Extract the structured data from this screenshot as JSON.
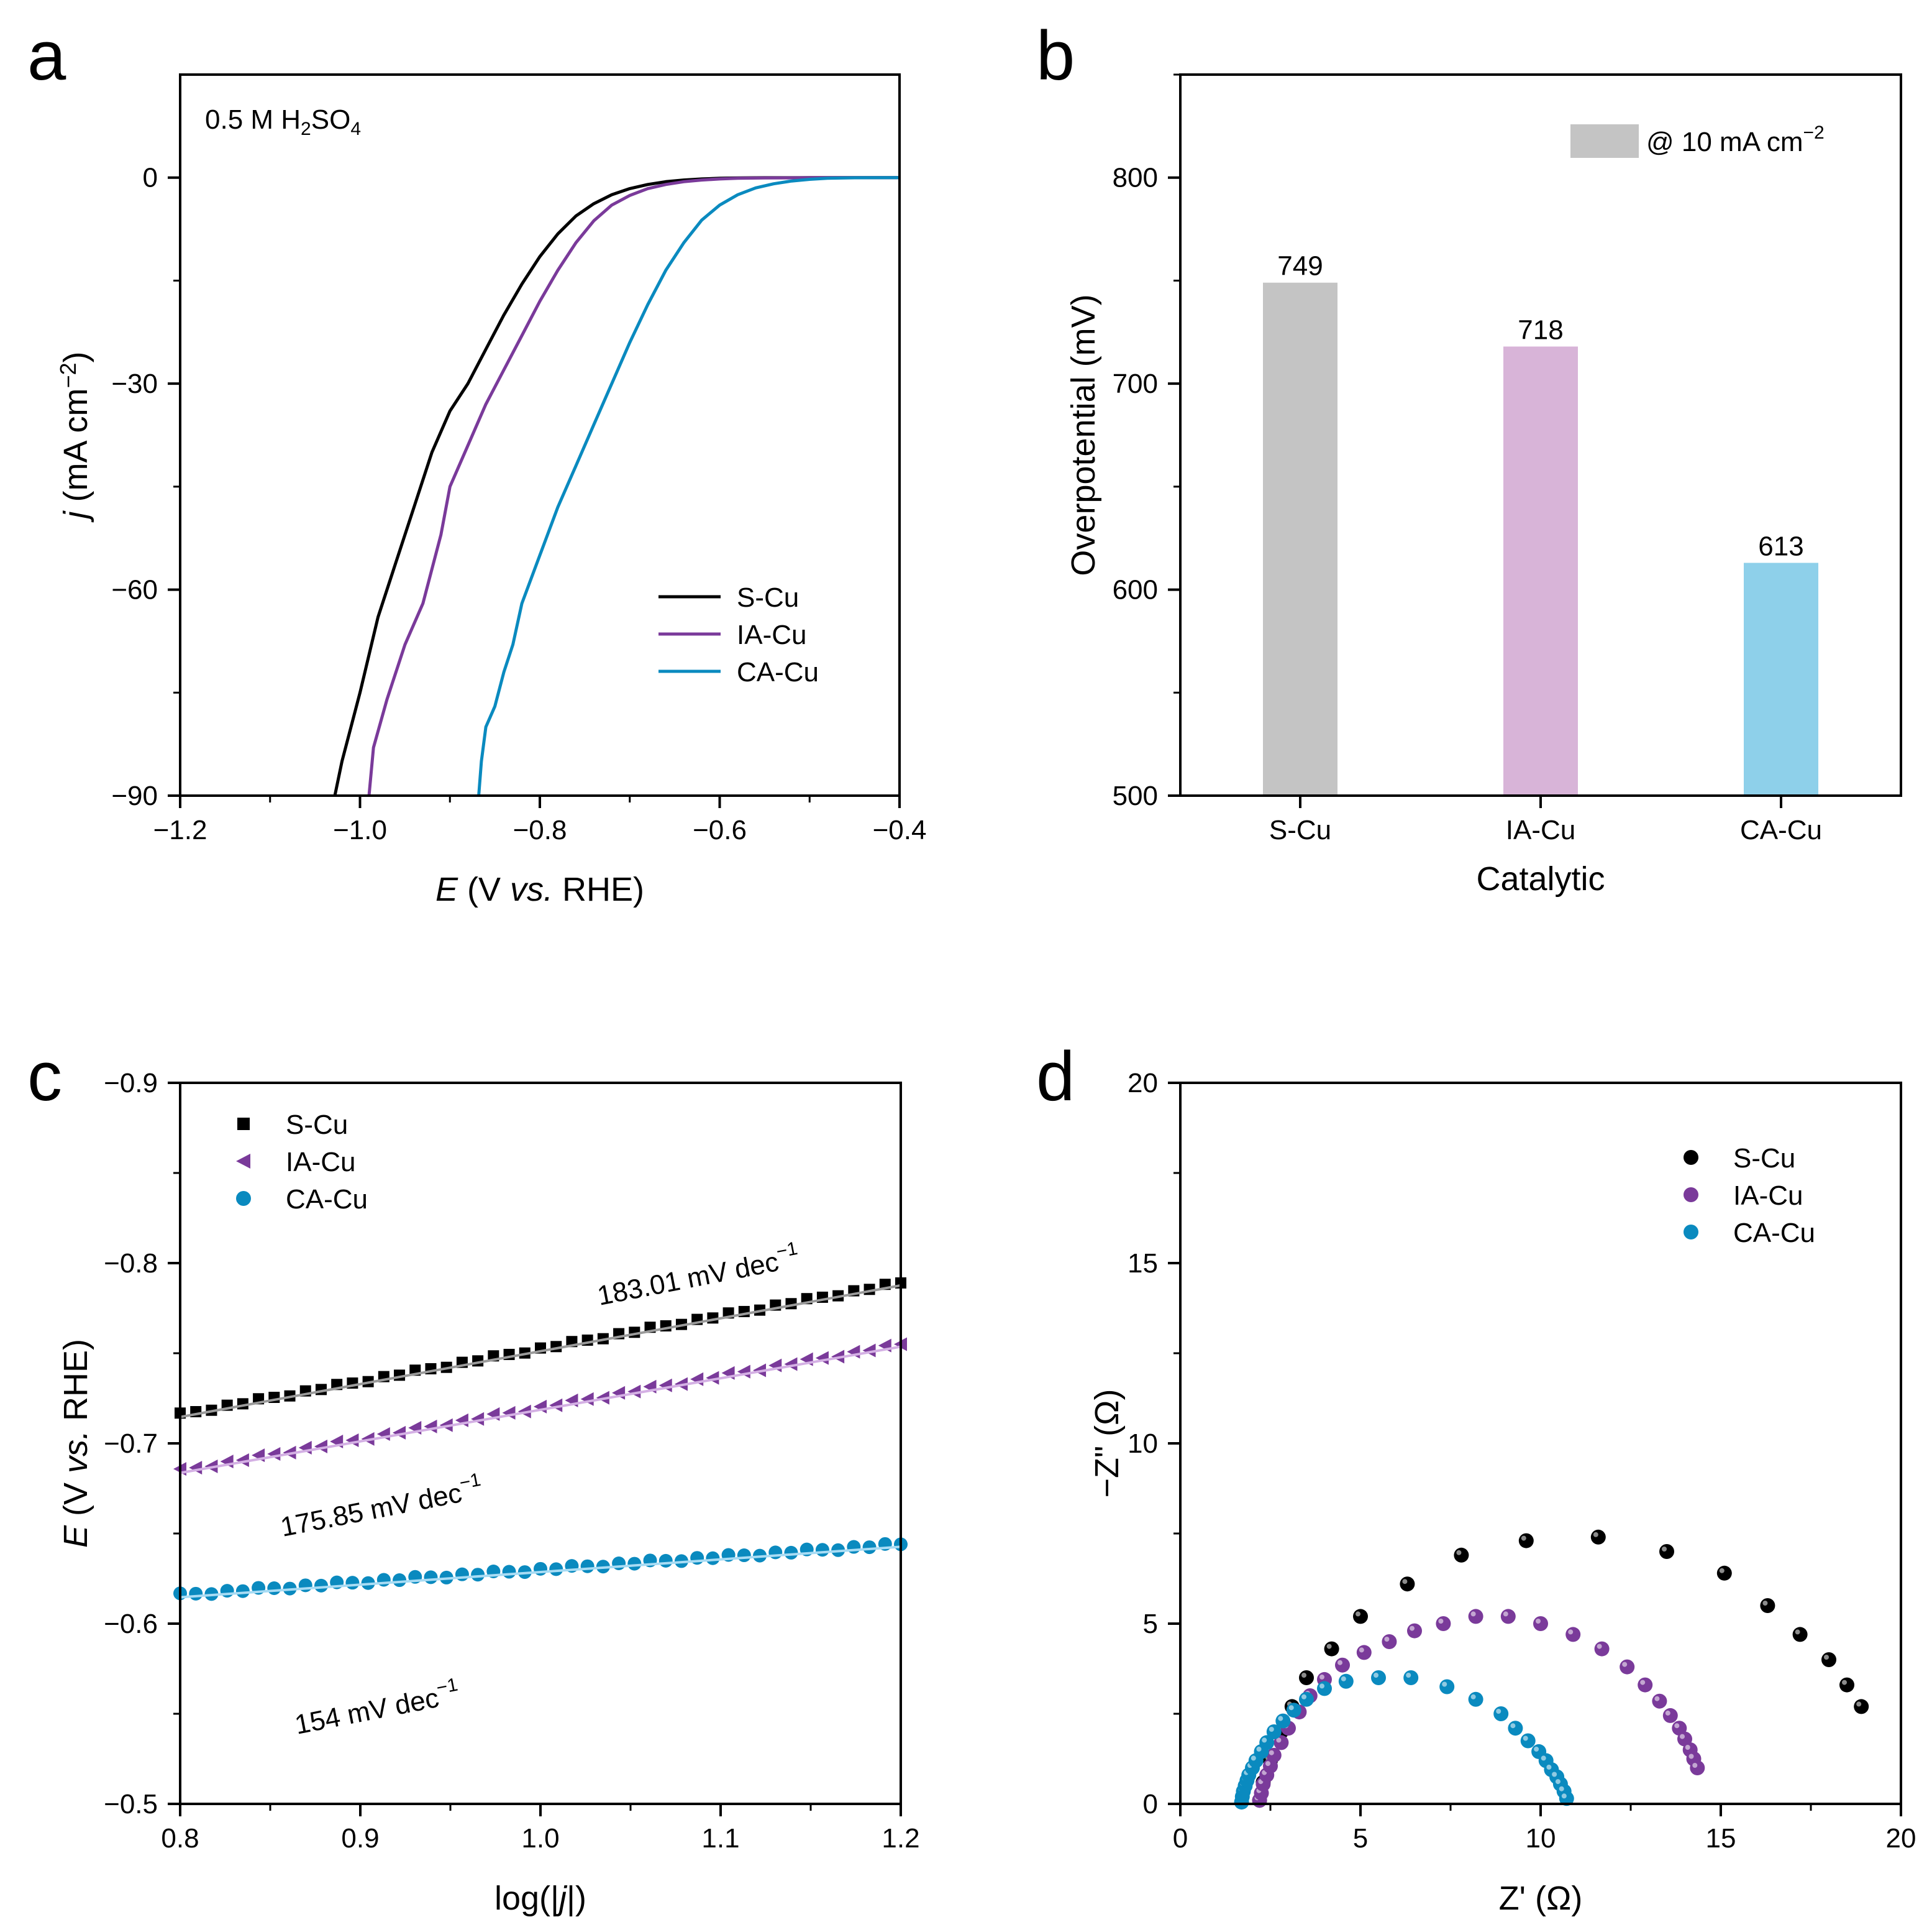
{
  "colors": {
    "s_cu": "#000000",
    "ia_cu": "#7a3a9a",
    "ca_cu": "#0a8abf",
    "bar_s": "#c4c4c4",
    "bar_ia": "#d8b4d8",
    "bar_ca": "#8ed0ea"
  },
  "chart_data": [
    {
      "panel": "a",
      "type": "line",
      "annotation": {
        "prefix": "0.5 M H",
        "sub1": "2",
        "mid": "SO",
        "sub2": "4"
      },
      "xlabel": {
        "italic": "E",
        "text1": " (V ",
        "italic2": "vs.",
        "text2": " RHE)"
      },
      "ylabel": {
        "italic": "j",
        "text": " (mA cm",
        "sup": "−2",
        "close": ")"
      },
      "xlim": [
        -1.2,
        -0.4
      ],
      "ylim": [
        -90,
        15
      ],
      "xticks": [
        "−1.2",
        "−1.0",
        "−0.8",
        "−0.6",
        "−0.4"
      ],
      "xtick_values": [
        -1.2,
        -1.0,
        -0.8,
        -0.6,
        -0.4
      ],
      "yticks": [
        "0",
        "−30",
        "−60",
        "−90"
      ],
      "ytick_values": [
        0,
        -30,
        -60,
        -90
      ],
      "legend": [
        "S-Cu",
        "IA-Cu",
        "CA-Cu"
      ],
      "series": [
        {
          "name": "S-Cu",
          "x": [
            -1.028,
            -1.02,
            -1.0,
            -0.98,
            -0.96,
            -0.94,
            -0.92,
            -0.9,
            -0.88,
            -0.86,
            -0.84,
            -0.82,
            -0.8,
            -0.78,
            -0.76,
            -0.74,
            -0.72,
            -0.7,
            -0.68,
            -0.66,
            -0.64,
            -0.62,
            -0.6,
            -0.58,
            -0.55,
            -0.5,
            -0.45,
            -0.4
          ],
          "y": [
            -90,
            -85,
            -75,
            -64,
            -56,
            -48,
            -40,
            -34,
            -30,
            -25,
            -20,
            -15.5,
            -11.5,
            -8.2,
            -5.6,
            -3.8,
            -2.5,
            -1.6,
            -1.0,
            -0.6,
            -0.35,
            -0.2,
            -0.1,
            -0.05,
            -0.02,
            -0.01,
            0,
            0
          ]
        },
        {
          "name": "IA-Cu",
          "x": [
            -0.99,
            -0.985,
            -0.97,
            -0.95,
            -0.93,
            -0.91,
            -0.9,
            -0.88,
            -0.86,
            -0.84,
            -0.82,
            -0.8,
            -0.78,
            -0.76,
            -0.74,
            -0.72,
            -0.7,
            -0.68,
            -0.66,
            -0.64,
            -0.62,
            -0.6,
            -0.58,
            -0.55,
            -0.5,
            -0.45,
            -0.4
          ],
          "y": [
            -90,
            -83,
            -76,
            -68,
            -62,
            -52,
            -45,
            -39,
            -33,
            -28,
            -23,
            -18,
            -13.5,
            -9.5,
            -6.3,
            -4.0,
            -2.6,
            -1.6,
            -1.0,
            -0.6,
            -0.35,
            -0.2,
            -0.1,
            -0.05,
            -0.02,
            0,
            0
          ]
        },
        {
          "name": "CA-Cu",
          "x": [
            -0.868,
            -0.865,
            -0.86,
            -0.85,
            -0.84,
            -0.83,
            -0.82,
            -0.8,
            -0.78,
            -0.76,
            -0.74,
            -0.72,
            -0.7,
            -0.68,
            -0.66,
            -0.64,
            -0.62,
            -0.6,
            -0.58,
            -0.56,
            -0.54,
            -0.52,
            -0.5,
            -0.48,
            -0.45,
            -0.4
          ],
          "y": [
            -90,
            -85,
            -80,
            -77,
            -72,
            -68,
            -62,
            -55,
            -48,
            -42,
            -36,
            -30,
            -24,
            -18.5,
            -13.5,
            -9.5,
            -6.2,
            -4.0,
            -2.5,
            -1.5,
            -0.9,
            -0.5,
            -0.25,
            -0.1,
            -0.03,
            0
          ]
        }
      ]
    },
    {
      "panel": "b",
      "type": "bar",
      "categories": [
        "S-Cu",
        "IA-Cu",
        "CA-Cu"
      ],
      "values": [
        749,
        718,
        613
      ],
      "value_labels": [
        "749",
        "718",
        "613"
      ],
      "xlabel": "Catalytic",
      "ylabel": "Overpotential (mV)",
      "ylim": [
        500,
        850
      ],
      "yticks": [
        "500",
        "600",
        "700",
        "800"
      ],
      "ytick_values": [
        500,
        600,
        700,
        800
      ],
      "legend": {
        "text": "@ 10 mA cm",
        "sup": "−2"
      }
    },
    {
      "panel": "c",
      "type": "scatter",
      "xlabel": {
        "text": "log(|",
        "italic": "j",
        "close": "|)"
      },
      "ylabel": {
        "italic": "E",
        "text1": " (V ",
        "italic2": "vs.",
        "text2": " RHE)"
      },
      "xlim": [
        0.8,
        1.2
      ],
      "ylim": [
        -0.5,
        -0.9
      ],
      "xticks": [
        "0.8",
        "0.9",
        "1.0",
        "1.1",
        "1.2"
      ],
      "xtick_values": [
        0.8,
        0.9,
        1.0,
        1.1,
        1.2
      ],
      "yticks": [
        "−0.9",
        "−0.8",
        "−0.7",
        "−0.6",
        "−0.5"
      ],
      "ytick_values": [
        -0.9,
        -0.8,
        -0.7,
        -0.6,
        -0.5
      ],
      "legend": [
        "S-Cu",
        "IA-Cu",
        "CA-Cu"
      ],
      "series": [
        {
          "name": "S-Cu",
          "marker": "square",
          "x_range": [
            0.8,
            1.2
          ],
          "y_range": [
            -0.716,
            -0.789
          ],
          "slope_label": "183.01 mV dec",
          "slope_sup": "−1"
        },
        {
          "name": "IA-Cu",
          "marker": "triangle-left",
          "x_range": [
            0.8,
            1.2
          ],
          "y_range": [
            -0.685,
            -0.755
          ],
          "slope_label": "175.85 mV dec",
          "slope_sup": "−1"
        },
        {
          "name": "CA-Cu",
          "marker": "circle",
          "x_range": [
            0.8,
            1.2
          ],
          "y_range": [
            -0.616,
            -0.644
          ],
          "slope_label": "154 mV dec",
          "slope_sup": "−1"
        }
      ]
    },
    {
      "panel": "d",
      "type": "scatter",
      "xlabel": "Z' (Ω)",
      "ylabel": "−Z\" (Ω)",
      "xlim": [
        0,
        20
      ],
      "ylim": [
        0,
        20
      ],
      "xticks": [
        "0",
        "5",
        "10",
        "15",
        "20"
      ],
      "xtick_values": [
        0,
        5,
        10,
        15,
        20
      ],
      "yticks": [
        "0",
        "5",
        "10",
        "15",
        "20"
      ],
      "ytick_values": [
        0,
        5,
        10,
        15,
        20
      ],
      "legend": [
        "S-Cu",
        "IA-Cu",
        "CA-Cu"
      ],
      "series": [
        {
          "name": "S-Cu",
          "x": [
            2.2,
            2.3,
            2.5,
            2.8,
            3.1,
            3.5,
            4.2,
            5.0,
            6.3,
            7.8,
            9.6,
            11.6,
            13.5,
            15.1,
            16.3,
            17.2,
            18.0,
            18.5,
            18.9
          ],
          "y": [
            0.1,
            0.6,
            1.2,
            2.0,
            2.7,
            3.5,
            4.3,
            5.2,
            6.1,
            6.9,
            7.3,
            7.4,
            7.0,
            6.4,
            5.5,
            4.7,
            4.0,
            3.3,
            2.7
          ]
        },
        {
          "name": "IA-Cu",
          "x": [
            2.2,
            2.25,
            2.3,
            2.4,
            2.5,
            2.6,
            2.8,
            3.0,
            3.3,
            3.6,
            4.0,
            4.5,
            5.1,
            5.8,
            6.5,
            7.3,
            8.2,
            9.1,
            10.0,
            10.9,
            11.7,
            12.4,
            12.9,
            13.3,
            13.6,
            13.85,
            14.0,
            14.15,
            14.25,
            14.35
          ],
          "y": [
            0.1,
            0.3,
            0.55,
            0.8,
            1.05,
            1.35,
            1.7,
            2.1,
            2.55,
            3.0,
            3.45,
            3.85,
            4.2,
            4.5,
            4.8,
            5.0,
            5.2,
            5.2,
            5.0,
            4.7,
            4.3,
            3.8,
            3.3,
            2.85,
            2.45,
            2.1,
            1.8,
            1.5,
            1.25,
            1.0
          ]
        },
        {
          "name": "CA-Cu",
          "x": [
            1.7,
            1.72,
            1.75,
            1.8,
            1.85,
            1.9,
            2.0,
            2.1,
            2.25,
            2.4,
            2.6,
            2.85,
            3.15,
            3.5,
            4.0,
            4.6,
            5.5,
            6.4,
            7.4,
            8.2,
            8.9,
            9.3,
            9.65,
            9.95,
            10.15,
            10.3,
            10.45,
            10.55,
            10.65,
            10.72
          ],
          "y": [
            0.05,
            0.2,
            0.35,
            0.5,
            0.65,
            0.8,
            1.0,
            1.2,
            1.45,
            1.7,
            2.0,
            2.3,
            2.6,
            2.9,
            3.2,
            3.4,
            3.5,
            3.5,
            3.25,
            2.9,
            2.5,
            2.1,
            1.75,
            1.45,
            1.2,
            0.95,
            0.75,
            0.55,
            0.35,
            0.15
          ]
        }
      ]
    }
  ]
}
